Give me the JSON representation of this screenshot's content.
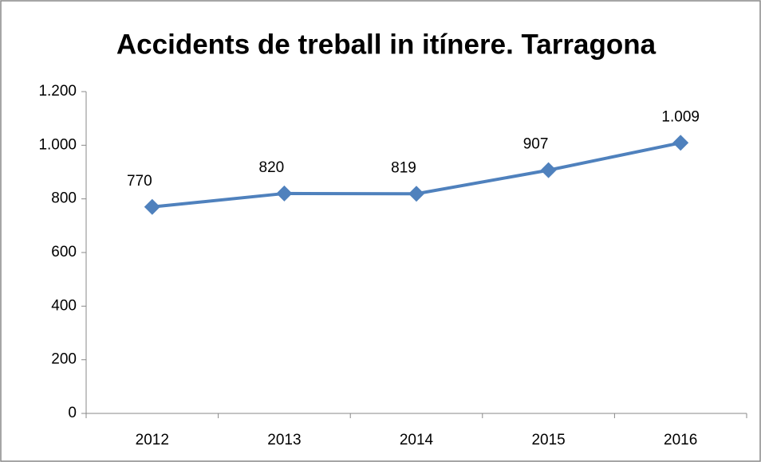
{
  "chart_data": {
    "type": "line",
    "title": "Accidents de treball in itínere. Tarragona",
    "categories": [
      "2012",
      "2013",
      "2014",
      "2015",
      "2016"
    ],
    "values": [
      770,
      820,
      819,
      907,
      1009
    ],
    "value_labels": [
      "770",
      "820",
      "819",
      "907",
      "1.009"
    ],
    "color": "#4f81bd",
    "ylim": [
      0,
      1200
    ],
    "yticks": [
      0,
      200,
      400,
      600,
      800,
      {
        "value": 1000,
        "label": "1.000"
      },
      {
        "value": 1200,
        "label": "1.200"
      }
    ],
    "grid": false
  }
}
